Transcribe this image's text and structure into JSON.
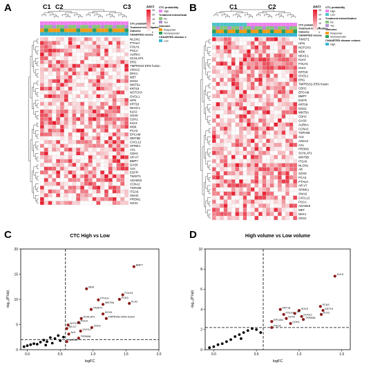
{
  "panels": {
    "A": {
      "letter": "A",
      "clusters": [
        "C1",
        "C2",
        "C3"
      ],
      "genes": [
        "NLGN1",
        "PTHLH",
        "FOLH1",
        "PSCA",
        "AURKA",
        "SCHLAP1",
        "ERG",
        "TMPRSS2-ERG fusion",
        "ANXA2",
        "DKK1",
        "MET",
        "DSG2",
        "WNT5A",
        "KRT19",
        "NOTCH3",
        "OVOL1",
        "HPN",
        "KRT18",
        "NKX3-1",
        "KLK2",
        "SOX9",
        "CDH1",
        "KLK3",
        "MDK",
        "PCA3",
        "EPCAM",
        "WNT5B",
        "CXCL12",
        "SPINK1",
        "AXL",
        "CDH2",
        "AR-V7",
        "BMP7",
        "GAS6",
        "ALK",
        "EGFR",
        "TWIST1",
        "ADAM15",
        "CCNA2",
        "TSPAN8",
        "ITGA6",
        "SNAI2",
        "PROM1",
        "SOX2"
      ],
      "legend": {
        "scale_title": "ΔΔCt",
        "scale_ticks": [
          "25",
          "20",
          "15",
          "10",
          "5",
          "0"
        ],
        "groups": [
          {
            "title": "CTC probability",
            "items": [
              "High"
            ]
          },
          {
            "title": "Treatment intensification",
            "items": [
              "No",
              "Yes"
            ]
          },
          {
            "title": "Outcome",
            "items": [
              "Responder",
              "Nonresponder"
            ]
          },
          {
            "title": "CHAARTED disease volume",
            "items": [
              "Low"
            ]
          }
        ],
        "track_labels": [
          "CTC probability",
          "Treatment intensification",
          "Outcome",
          "CHAARTED volume"
        ]
      }
    },
    "B": {
      "letter": "B",
      "clusters": [
        "C1",
        "C2"
      ],
      "genes": [
        "TWIST1",
        "HPN",
        "NOTCH3",
        "MDK",
        "NKX3-1",
        "KLK3",
        "FOLH1",
        "KLK2",
        "KRT19",
        "OVOL1",
        "ERG",
        "TMPRSS2-ERG fusion",
        "CDH1",
        "EPCAM",
        "BMP7",
        "EGFR",
        "KRT18",
        "DSG2",
        "WNT5A",
        "CDH2",
        "GAS6",
        "AURKA",
        "CCNA2",
        "TSPAN8",
        "ALK",
        "ANXA2",
        "AXL",
        "PROM1",
        "SCHLAP1",
        "WNT5B",
        "ITGA6",
        "NLGN1",
        "AR",
        "SOX9",
        "PCA3",
        "PTHLH",
        "AR-V7",
        "SPINK1",
        "SNAI2",
        "CXCL12",
        "PSCA",
        "ADAM15",
        "MET",
        "DKK1",
        "SOX2"
      ],
      "legend": {
        "scale_title": "ΔΔCt",
        "scale_ticks": [
          "25",
          "20",
          "15",
          "10",
          "5",
          "0"
        ],
        "groups": [
          {
            "title": "CTC probability",
            "items": [
              "High",
              "Low"
            ]
          },
          {
            "title": "Treatment intensification",
            "items": [
              "No",
              "Yes"
            ]
          },
          {
            "title": "Outcome",
            "items": [
              "Responder",
              "Nonresponder"
            ]
          },
          {
            "title": "CHAARTED disease volume",
            "items": [
              "High"
            ]
          }
        ],
        "track_labels": [
          "CTC probability",
          "Treatment intensification",
          "Outcome",
          "CHAARTED volume"
        ]
      }
    },
    "C": {
      "letter": "C"
    },
    "D": {
      "letter": "D"
    }
  },
  "colors": {
    "heat_low": "#ffffff",
    "heat_high": "#e8182a",
    "ctc_high": "#ee82ee",
    "ctc_low": "#4ec3c9",
    "treat_no": "#86c57a",
    "treat_yes": "#b58fd6",
    "resp": "#f39c12",
    "nonresp": "#2e9e5e",
    "vol_low": "#39b6d6",
    "vol_high": "#39b6d6",
    "dot_sig": "#8b1a1a",
    "dot_ns": "#000000"
  },
  "chart_data": [
    {
      "type": "scatter",
      "title": "CTC High vs Low",
      "xlabel": "logFC",
      "ylabel": "-log₁₀(P.Val)",
      "xlim": [
        -0.1,
        2.0
      ],
      "ylim": [
        0,
        20
      ],
      "xticks": [
        "0.0",
        "0.5",
        "1.0",
        "1.5",
        "2.0"
      ],
      "yticks": [
        "0",
        "5",
        "10",
        "15",
        "20"
      ],
      "thresholds": {
        "x": 0.58,
        "y": 2.0
      },
      "significant": [
        {
          "label": "BMP7",
          "x": 1.62,
          "y": 16.5
        },
        {
          "label": "MDK",
          "x": 0.9,
          "y": 12.1
        },
        {
          "label": "FOLH1",
          "x": 1.45,
          "y": 10.9
        },
        {
          "label": "PCA3",
          "x": 1.4,
          "y": 10.0
        },
        {
          "label": "PTHLH",
          "x": 1.08,
          "y": 9.9
        },
        {
          "label": "KLK2",
          "x": 1.55,
          "y": 9.2
        },
        {
          "label": "WNT5A",
          "x": 1.15,
          "y": 9.0
        },
        {
          "label": "TWIST1",
          "x": 0.97,
          "y": 8.0
        },
        {
          "label": "SOX9",
          "x": 1.15,
          "y": 7.1
        },
        {
          "label": "TMPRSS2-ERG fusion",
          "x": 1.2,
          "y": 6.2
        },
        {
          "label": "SCHLAP1",
          "x": 0.82,
          "y": 6.2
        },
        {
          "label": "PSCA",
          "x": 0.78,
          "y": 5.4
        },
        {
          "label": "NOTCH3",
          "x": 0.62,
          "y": 4.9
        },
        {
          "label": "CDH1",
          "x": 0.98,
          "y": 4.4
        },
        {
          "label": "AR-V7",
          "x": 0.6,
          "y": 4.2
        },
        {
          "label": "OVOL1",
          "x": 0.81,
          "y": 3.7
        },
        {
          "label": "ALK",
          "x": 0.63,
          "y": 3.1
        },
        {
          "label": "TSPAN8",
          "x": 0.78,
          "y": 2.3
        },
        {
          "label": "NLGN1",
          "x": 0.6,
          "y": 1.6
        }
      ],
      "nonsignificant": [
        {
          "x": -0.05,
          "y": 0.6
        },
        {
          "x": 0.0,
          "y": 0.8
        },
        {
          "x": 0.05,
          "y": 1.0
        },
        {
          "x": 0.1,
          "y": 1.2
        },
        {
          "x": 0.15,
          "y": 1.1
        },
        {
          "x": 0.2,
          "y": 1.5
        },
        {
          "x": 0.25,
          "y": 1.9
        },
        {
          "x": 0.3,
          "y": 1.6
        },
        {
          "x": 0.35,
          "y": 2.4
        },
        {
          "x": 0.42,
          "y": 2.2
        },
        {
          "x": 0.47,
          "y": 2.8
        },
        {
          "x": 0.5,
          "y": 1.8
        },
        {
          "x": 0.38,
          "y": 1.3
        },
        {
          "x": 0.28,
          "y": 0.9
        },
        {
          "x": 0.55,
          "y": 2.5
        }
      ]
    },
    {
      "type": "scatter",
      "title": "High volume vs Low volume",
      "xlabel": "logFC",
      "ylabel": "-log₁₀(P.Val)",
      "xlim": [
        -0.1,
        1.6
      ],
      "ylim": [
        0,
        10
      ],
      "xticks": [
        "0.0",
        "0.5",
        "1.0",
        "1.5"
      ],
      "yticks": [
        "0",
        "2",
        "4",
        "6",
        "8",
        "10"
      ],
      "thresholds": {
        "x": 0.58,
        "y": 2.2
      },
      "significant": [
        {
          "label": "KLK3",
          "x": 1.42,
          "y": 7.3
        },
        {
          "label": "PCA3",
          "x": 1.25,
          "y": 4.3
        },
        {
          "label": "KRT19",
          "x": 1.28,
          "y": 3.9
        },
        {
          "label": "KLK2",
          "x": 1.26,
          "y": 3.5
        },
        {
          "label": "SOX9",
          "x": 1.0,
          "y": 3.9
        },
        {
          "label": "AR",
          "x": 0.95,
          "y": 3.6
        },
        {
          "label": "KRT18",
          "x": 0.78,
          "y": 4.0
        },
        {
          "label": "FOLH1",
          "x": 0.82,
          "y": 3.5
        },
        {
          "label": "OVOL1",
          "x": 1.03,
          "y": 3.3
        },
        {
          "label": "TSPAN8",
          "x": 1.05,
          "y": 3.0
        },
        {
          "label": "SOX2",
          "x": 0.85,
          "y": 3.1
        },
        {
          "label": "EPCAM",
          "x": 0.68,
          "y": 2.8
        },
        {
          "label": "CDH1",
          "x": 0.9,
          "y": 2.6
        },
        {
          "label": "PSCA",
          "x": 0.68,
          "y": 2.2
        }
      ],
      "nonsignificant": [
        {
          "x": -0.05,
          "y": 0.2
        },
        {
          "x": 0.0,
          "y": 0.3
        },
        {
          "x": 0.05,
          "y": 0.5
        },
        {
          "x": 0.1,
          "y": 0.6
        },
        {
          "x": 0.15,
          "y": 0.8
        },
        {
          "x": 0.2,
          "y": 1.0
        },
        {
          "x": 0.25,
          "y": 1.3
        },
        {
          "x": 0.3,
          "y": 1.5
        },
        {
          "x": 0.35,
          "y": 1.7
        },
        {
          "x": 0.4,
          "y": 1.9
        },
        {
          "x": 0.45,
          "y": 2.1
        },
        {
          "x": 0.5,
          "y": 2.0
        },
        {
          "x": 0.55,
          "y": 1.7
        },
        {
          "x": 0.32,
          "y": 1.1
        }
      ]
    }
  ]
}
